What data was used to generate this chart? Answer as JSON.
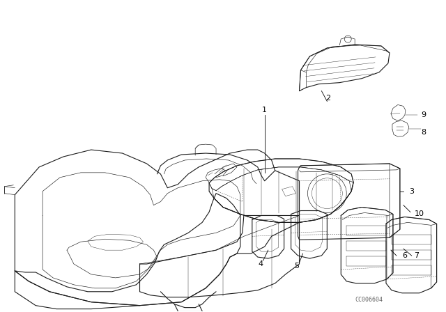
{
  "background_color": "#ffffff",
  "line_color": "#1a1a1a",
  "watermark": "CC006604",
  "figsize": [
    6.4,
    4.48
  ],
  "dpi": 100,
  "lw_main": 0.8,
  "lw_thin": 0.45,
  "lw_detail": 0.3,
  "label_fontsize": 8.0
}
